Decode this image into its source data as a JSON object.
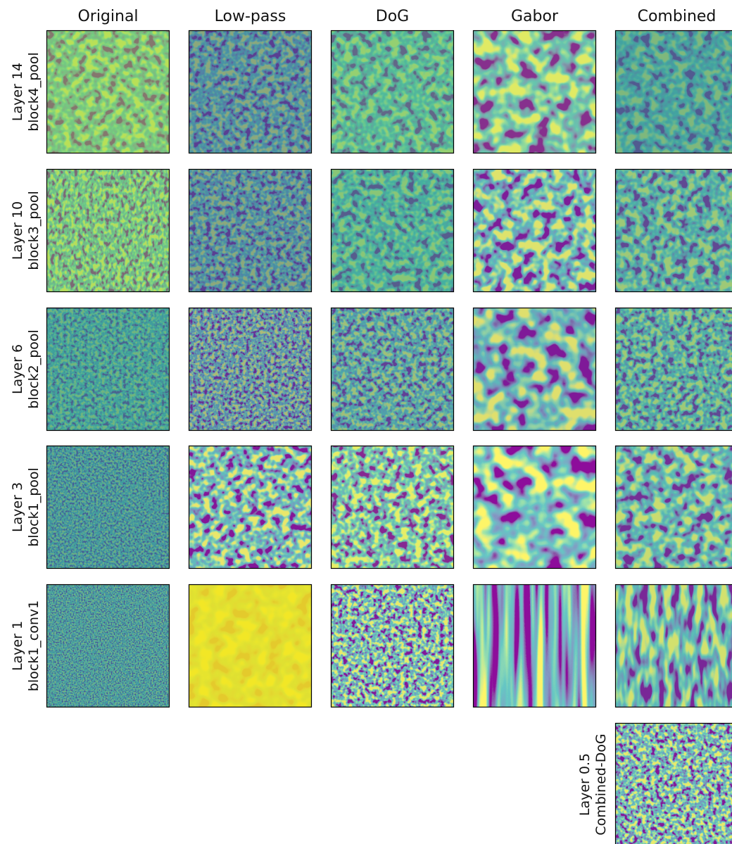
{
  "columns": [
    "Original",
    "Low-pass",
    "DoG",
    "Gabor",
    "Combined"
  ],
  "rows": [
    {
      "layer": "Layer 14",
      "block": "block4_pool"
    },
    {
      "layer": "Layer 10",
      "block": "block3_pool"
    },
    {
      "layer": "Layer 6",
      "block": "block2_pool"
    },
    {
      "layer": "Layer 3",
      "block": "block1_pool"
    },
    {
      "layer": "Layer 1",
      "block": "block1_conv1"
    },
    {
      "layer": "Layer 0.5",
      "block": "Combined-DoG"
    }
  ]
}
